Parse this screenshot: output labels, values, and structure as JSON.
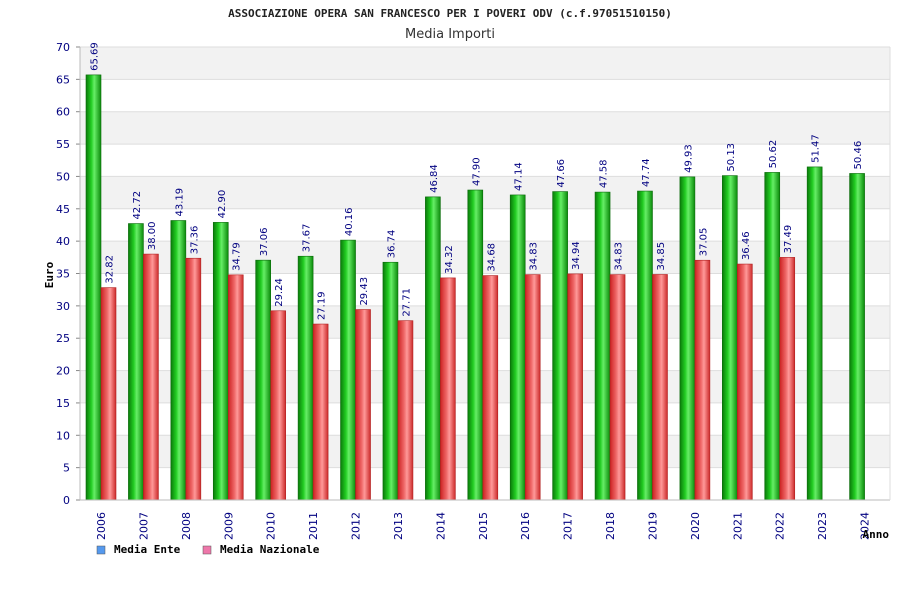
{
  "chart_data": {
    "type": "bar",
    "title": "ASSOCIAZIONE OPERA SAN FRANCESCO PER I POVERI ODV (c.f.97051510150)",
    "subtitle": "Media Importi",
    "ylabel": "Euro",
    "xlabel": "Anno",
    "ylim": [
      0,
      70
    ],
    "ytick_step": 5,
    "grid": true,
    "legend_position": "bottom-left",
    "categories": [
      "2006",
      "2007",
      "2008",
      "2009",
      "2010",
      "2011",
      "2012",
      "2013",
      "2014",
      "2015",
      "2016",
      "2017",
      "2018",
      "2019",
      "2020",
      "2021",
      "2022",
      "2023",
      "2024"
    ],
    "series": [
      {
        "name": "Media Ente",
        "color": "#22bb22",
        "legend_color": "#5599ee",
        "values": [
          65.69,
          42.72,
          43.19,
          42.9,
          37.06,
          37.67,
          40.16,
          36.74,
          46.84,
          47.9,
          47.14,
          47.66,
          47.58,
          47.74,
          49.93,
          50.13,
          50.62,
          51.47,
          50.46
        ],
        "labels": [
          "65.69",
          "42.72",
          "43.19",
          "42.90",
          "37.06",
          "37.67",
          "40.16",
          "36.74",
          "46.84",
          "47.90",
          "47.14",
          "47.66",
          "47.58",
          "47.74",
          "49.93",
          "50.13",
          "50.62",
          "51.47",
          "50.46"
        ]
      },
      {
        "name": "Media Nazionale",
        "color": "#ee4444",
        "legend_color": "#ee77aa",
        "values": [
          32.82,
          38.0,
          37.36,
          34.79,
          29.24,
          27.19,
          29.43,
          27.71,
          34.32,
          34.68,
          34.83,
          34.94,
          34.83,
          34.85,
          37.05,
          36.46,
          37.49,
          null,
          null
        ],
        "labels": [
          "32.82",
          "38.00",
          "37.36",
          "34.79",
          "29.24",
          "27.19",
          "29.43",
          "27.71",
          "34.32",
          "34.68",
          "34.83",
          "34.94",
          "34.83",
          "34.85",
          "37.05",
          "36.46",
          "37.49",
          "",
          ""
        ]
      }
    ]
  }
}
